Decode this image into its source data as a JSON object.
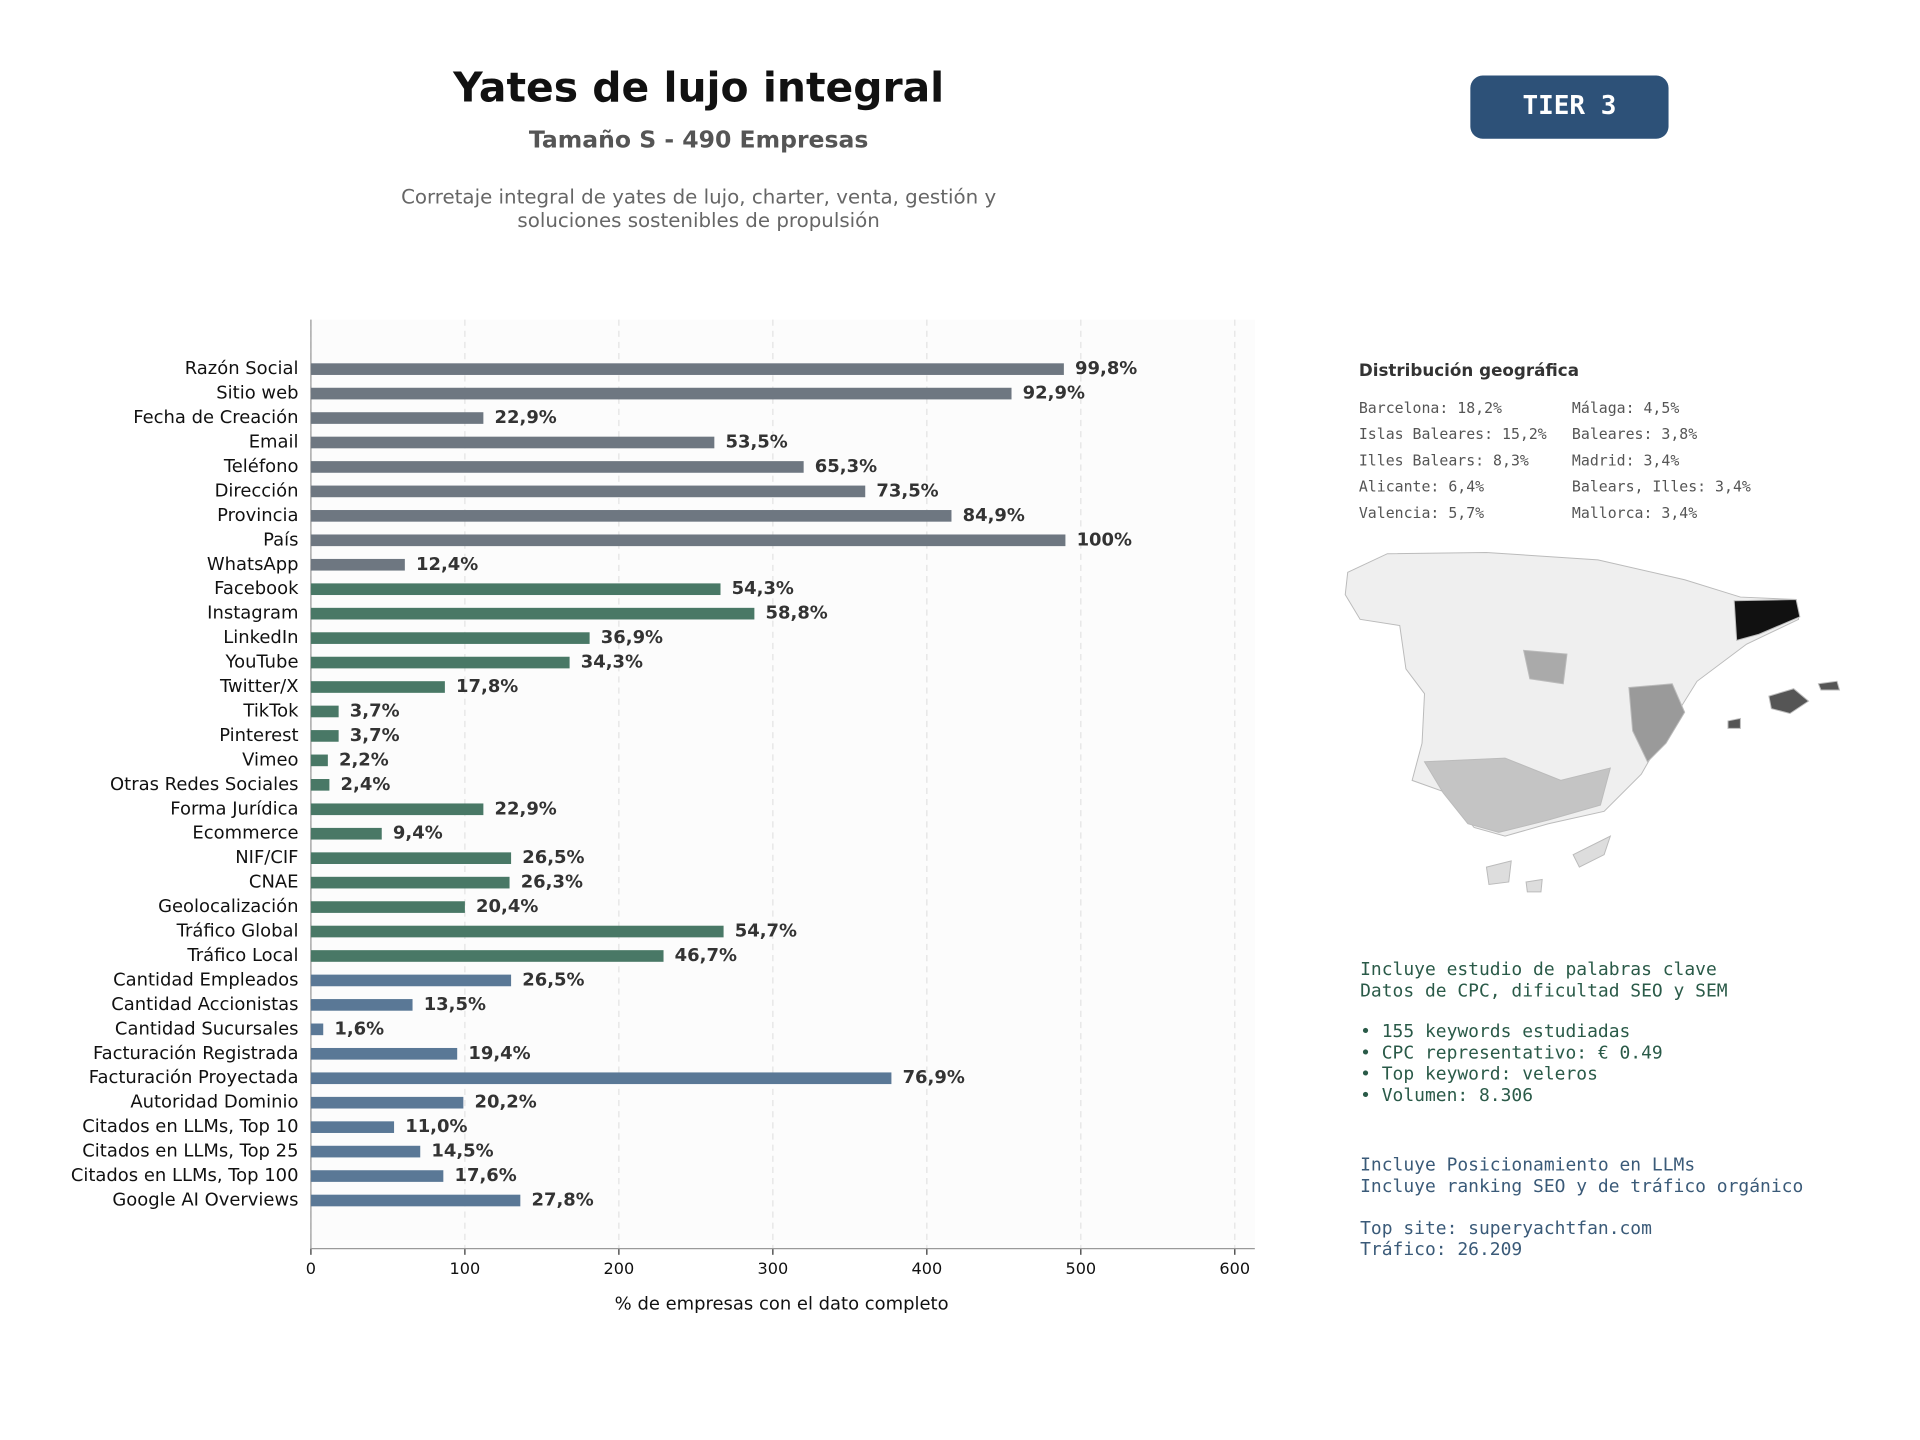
{
  "chart_data": {
    "type": "bar",
    "orientation": "horizontal",
    "title": "Yates de lujo integral",
    "subtitle": "Tamaño S - 490 Empresas",
    "description": [
      "Corretaje integral de yates de lujo, charter, venta, gestión y",
      "soluciones sostenibles de propulsión"
    ],
    "xlabel": "% de empresas con el dato completo",
    "categories": [
      "Razón Social",
      "Sitio web",
      "Fecha de Creación",
      "Email",
      "Teléfono",
      "Dirección",
      "Provincia",
      "País",
      "WhatsApp",
      "Facebook",
      "Instagram",
      "LinkedIn",
      "YouTube",
      "Twitter/X",
      "TikTok",
      "Pinterest",
      "Vimeo",
      "Otras Redes Sociales",
      "Forma Jurídica",
      "Ecommerce",
      "NIF/CIF",
      "CNAE",
      "Geolocalización",
      "Tráfico Global",
      "Tráfico Local",
      "Cantidad Empleados",
      "Cantidad Accionistas",
      "Cantidad Sucursales",
      "Facturación Registrada",
      "Facturación Proyectada",
      "Autoridad Dominio",
      "Citados en LLMs, Top 10",
      "Citados en LLMs, Top 25",
      "Citados en LLMs, Top 100",
      "Google AI Overviews"
    ],
    "values": [
      489,
      455,
      112,
      262,
      320,
      360,
      416,
      490,
      61,
      266,
      288,
      181,
      168,
      87,
      18,
      18,
      11,
      12,
      112,
      46,
      130,
      129,
      100,
      268,
      229,
      130,
      66,
      8,
      95,
      377,
      99,
      54,
      71,
      86,
      136
    ],
    "value_labels": [
      "99,8%",
      "92,9%",
      "22,9%",
      "53,5%",
      "65,3%",
      "73,5%",
      "84,9%",
      "100%",
      "12,4%",
      "54,3%",
      "58,8%",
      "36,9%",
      "34,3%",
      "17,8%",
      "3,7%",
      "3,7%",
      "2,2%",
      "2,4%",
      "22,9%",
      "9,4%",
      "26,5%",
      "26,3%",
      "20,4%",
      "54,7%",
      "46,7%",
      "26,5%",
      "13,5%",
      "1,6%",
      "19,4%",
      "76,9%",
      "20,2%",
      "11,0%",
      "14,5%",
      "17,6%",
      "27,8%"
    ],
    "colors": [
      "#6e7781",
      "#6e7781",
      "#6e7781",
      "#6e7781",
      "#6e7781",
      "#6e7781",
      "#6e7781",
      "#6e7781",
      "#6e7781",
      "#497866",
      "#497866",
      "#497866",
      "#497866",
      "#497866",
      "#497866",
      "#497866",
      "#497866",
      "#497866",
      "#497866",
      "#497866",
      "#497866",
      "#497866",
      "#497866",
      "#497866",
      "#497866",
      "#5a7896",
      "#5a7896",
      "#5a7896",
      "#5a7896",
      "#5a7896",
      "#5a7896",
      "#5a7896",
      "#5a7896",
      "#5a7896",
      "#5a7896"
    ],
    "xlim": [
      0,
      613
    ],
    "xticks": [
      0,
      100,
      200,
      300,
      400,
      500,
      600
    ],
    "grid": true
  },
  "badge": "TIER 3",
  "geo": {
    "title": "Distribución geográfica",
    "column_1": [
      "Barcelona: 18,2%",
      "Islas Baleares: 15,2%",
      "Illes Balears: 8,3%",
      "Alicante: 6,4%",
      "Valencia: 5,7%"
    ],
    "column_2": [
      "Málaga: 4,5%",
      "Baleares: 3,8%",
      "Madrid: 3,4%",
      "Balears, Illes: 3,4%",
      "Mallorca: 3,4%"
    ]
  },
  "keywords_intro": [
    "Incluye estudio de palabras clave",
    "Datos de CPC, dificultad SEO y SEM"
  ],
  "keywords_stats": [
    "• 155 keywords estudiadas",
    "• CPC representativo: € 0.49",
    "• Top keyword: veleros",
    "• Volumen: 8.306"
  ],
  "llm_intro": [
    "Incluye Posicionamiento en LLMs",
    "Incluye ranking SEO y de tráfico orgánico"
  ],
  "top_site": [
    "Top site: superyachtfan.com",
    "Tráfico: 26.209"
  ]
}
